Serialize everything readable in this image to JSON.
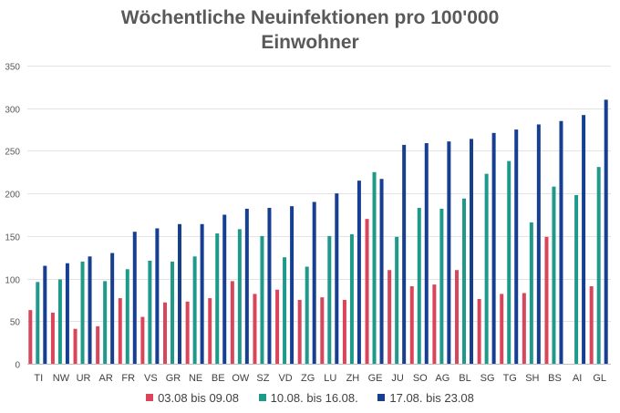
{
  "chart_data": {
    "type": "bar",
    "title_lines": [
      "Wöchentliche Neuinfektionen pro 100'000",
      "Einwohner"
    ],
    "categories": [
      "TI",
      "NW",
      "UR",
      "AR",
      "FR",
      "VS",
      "GR",
      "NE",
      "BE",
      "OW",
      "SZ",
      "VD",
      "ZG",
      "LU",
      "ZH",
      "GE",
      "JU",
      "SO",
      "AG",
      "BL",
      "SG",
      "TG",
      "SH",
      "BS",
      "AI",
      "GL"
    ],
    "series": [
      {
        "name": "03.08 bis 09.08",
        "color": "#d9455a",
        "values": [
          63,
          60,
          41,
          44,
          77,
          55,
          72,
          73,
          77,
          97,
          82,
          87,
          75,
          78,
          75,
          170,
          110,
          91,
          93,
          110,
          76,
          82,
          83,
          149,
          0,
          91
        ]
      },
      {
        "name": "10.08. bis 16.08.",
        "color": "#1f9a8a",
        "values": [
          96,
          99,
          120,
          97,
          111,
          121,
          120,
          126,
          153,
          158,
          150,
          125,
          114,
          150,
          152,
          225,
          149,
          183,
          182,
          194,
          223,
          238,
          166,
          208,
          198,
          231
        ]
      },
      {
        "name": "17.08. bis 23.08",
        "color": "#173f91",
        "values": [
          115,
          118,
          126,
          130,
          155,
          159,
          164,
          164,
          175,
          182,
          183,
          185,
          190,
          200,
          215,
          217,
          257,
          259,
          261,
          264,
          271,
          275,
          281,
          285,
          292,
          310
        ]
      }
    ],
    "ylim": [
      0,
      350
    ],
    "yticks": [
      0,
      50,
      100,
      150,
      200,
      250,
      300,
      350
    ],
    "grid": true,
    "legend_position": "bottom"
  }
}
